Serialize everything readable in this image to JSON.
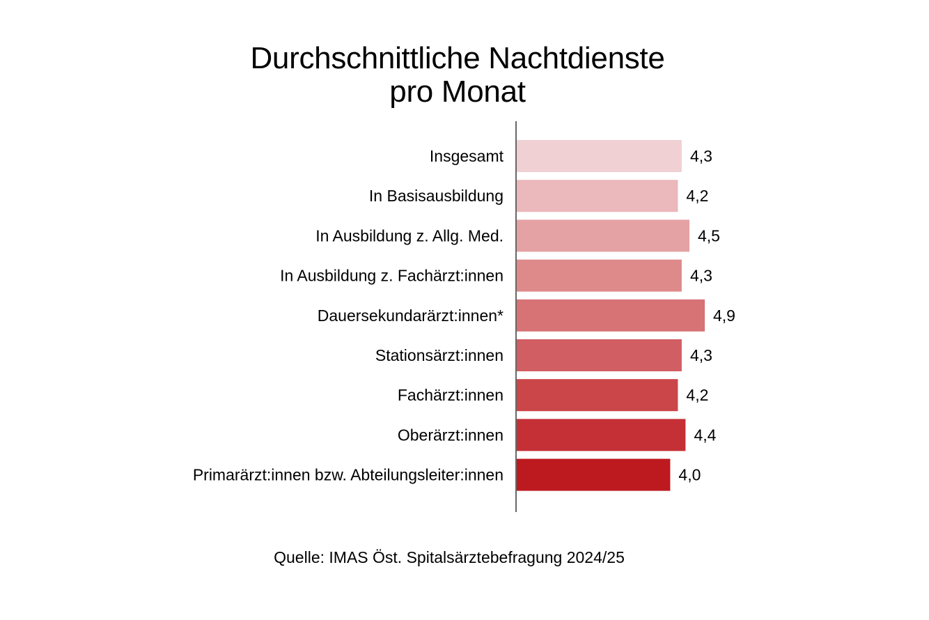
{
  "chart_data": {
    "type": "bar",
    "orientation": "horizontal",
    "title_lines": [
      "Durchschnittliche Nachtdienste",
      "pro Monat"
    ],
    "categories": [
      "Insgesamt",
      "In Basisausbildung",
      "In Ausbildung z. Allg. Med.",
      "In Ausbildung z. Fachärzt:innen",
      "Dauersekundarärzt:innen*",
      "Stationsärzt:innen",
      "Fachärzt:innen",
      "Oberärzt:innen",
      "Primarärzt:innen bzw. Abteilungsleiter:innen"
    ],
    "values": [
      4.3,
      4.2,
      4.5,
      4.3,
      4.9,
      4.3,
      4.2,
      4.4,
      4.0
    ],
    "value_labels": [
      "4,3",
      "4,2",
      "4,5",
      "4,3",
      "4,9",
      "4,3",
      "4,2",
      "4,4",
      "4,0"
    ],
    "colors": [
      "#f0d0d2",
      "#ebb8bb",
      "#e5a2a4",
      "#de8a8b",
      "#d77275",
      "#d15e62",
      "#cb4649",
      "#c43036",
      "#bd1a20"
    ],
    "xlim": [
      0,
      4.9
    ],
    "xlabel": "",
    "ylabel": "",
    "grid": false,
    "legend": "none"
  },
  "source": "Quelle: IMAS Öst. Spitalsärztebefragung 2024/25"
}
